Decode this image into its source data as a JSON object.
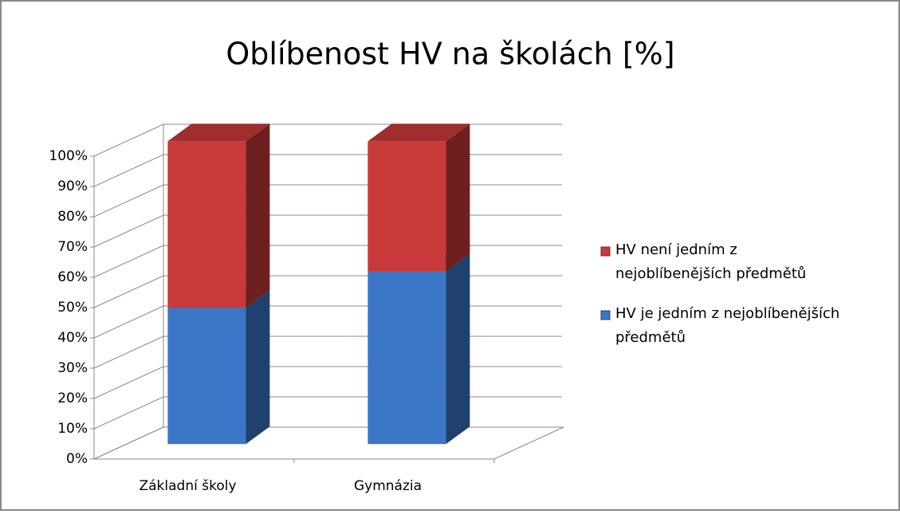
{
  "chart_data": {
    "type": "bar",
    "stacked": true,
    "title": "Oblíbenost HV na školách [%]",
    "categories": [
      "Základní školy",
      "Gymnázia"
    ],
    "series": [
      {
        "name": "HV je jedním z nejoblíbenějších předmětů",
        "color": "#3b76c6",
        "values": [
          45,
          57
        ]
      },
      {
        "name": "HV není jedním z nejoblíbenějších předmětů",
        "color": "#c8393a",
        "values": [
          55,
          43
        ]
      }
    ],
    "ylim": [
      0,
      100
    ],
    "yticks": [
      {
        "value": 0,
        "label": "0%"
      },
      {
        "value": 10,
        "label": "10%"
      },
      {
        "value": 20,
        "label": "20%"
      },
      {
        "value": 30,
        "label": "30%"
      },
      {
        "value": 40,
        "label": "40%"
      },
      {
        "value": 50,
        "label": "50%"
      },
      {
        "value": 60,
        "label": "60%"
      },
      {
        "value": 70,
        "label": "70%"
      },
      {
        "value": 80,
        "label": "80%"
      },
      {
        "value": 90,
        "label": "90%"
      },
      {
        "value": 100,
        "label": "100%"
      }
    ],
    "grid": true,
    "legend": "right"
  }
}
